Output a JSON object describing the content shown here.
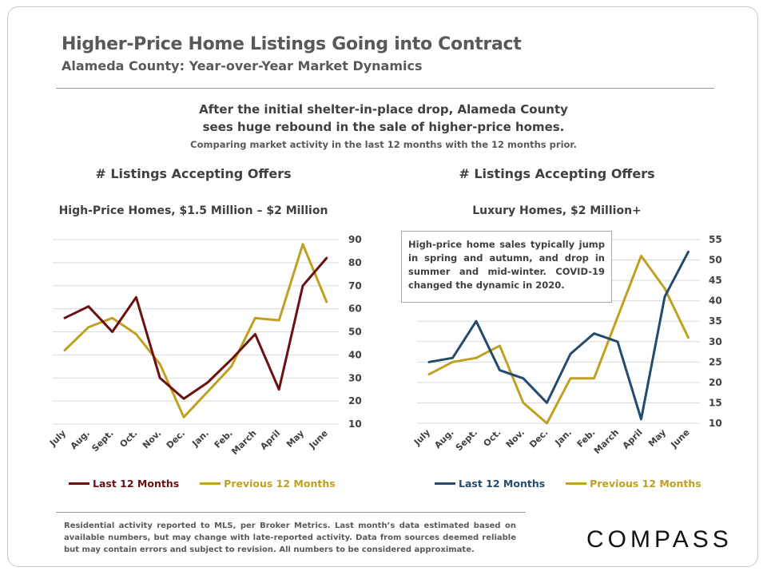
{
  "header": {
    "title": "Higher-Price Home Listings Going into Contract",
    "subtitle": "Alameda County:  Year-over-Year  Market  Dynamics"
  },
  "headline": {
    "line1": "After the initial shelter-in-place drop, Alameda County",
    "line2": "sees huge rebound in the sale of higher-price homes.",
    "line3": "Comparing market activity in the last 12 months with the 12 months prior."
  },
  "annotation": "High-price home sales typically jump in spring and autumn, and drop in summer and mid-winter. COVID-19 changed the dynamic in 2020.",
  "footnote": "Residential activity reported to MLS, per Broker Metrics. Last month’s data estimated based on available numbers, but may change with late-reported activity. Data from sources deemed reliable but may contain errors and subject to revision. All numbers to be considered approximate.",
  "logo": "COMPASS",
  "colors": {
    "last_left": "#6b0f0f",
    "prev": "#c0a022",
    "last_right": "#244a6e",
    "grid": "#d9d9d9"
  },
  "chart_data": [
    {
      "type": "line",
      "title": "# Listings  Accepting  Offers",
      "subtitle": "High-Price Homes, $1.5 Million – $2 Million",
      "categories": [
        "July",
        "Aug.",
        "Sept.",
        "Oct.",
        "Nov.",
        "Dec.",
        "Jan.",
        "Feb.",
        "March",
        "April",
        "May",
        "June"
      ],
      "yticks": [
        10,
        20,
        30,
        40,
        50,
        60,
        70,
        80,
        90
      ],
      "ylim": [
        10,
        90
      ],
      "grid": "horizontal",
      "legend_position": "bottom",
      "series": [
        {
          "name": "Last 12 Months",
          "values": [
            56,
            61,
            50,
            65,
            30,
            21,
            28,
            38,
            49,
            25,
            70,
            82
          ]
        },
        {
          "name": "Previous 12 Months",
          "values": [
            42,
            52,
            56,
            49,
            36,
            13,
            24,
            35,
            56,
            55,
            88,
            63
          ]
        }
      ]
    },
    {
      "type": "line",
      "title": "# Listings  Accepting  Offers",
      "subtitle": "Luxury Homes, $2 Million+",
      "categories": [
        "July",
        "Aug.",
        "Sept.",
        "Oct.",
        "Nov.",
        "Dec.",
        "Jan.",
        "Feb.",
        "March",
        "April",
        "May",
        "June"
      ],
      "yticks": [
        10,
        15,
        20,
        25,
        30,
        35,
        40,
        45,
        50,
        55
      ],
      "ylim": [
        10,
        55
      ],
      "grid": "horizontal",
      "legend_position": "bottom",
      "series": [
        {
          "name": "Last 12 Months",
          "values": [
            25,
            26,
            35,
            23,
            21,
            15,
            27,
            32,
            30,
            11,
            41,
            52
          ]
        },
        {
          "name": "Previous 12 Months",
          "values": [
            22,
            25,
            26,
            29,
            15,
            10,
            21,
            21,
            36,
            51,
            43,
            31
          ]
        }
      ]
    }
  ]
}
